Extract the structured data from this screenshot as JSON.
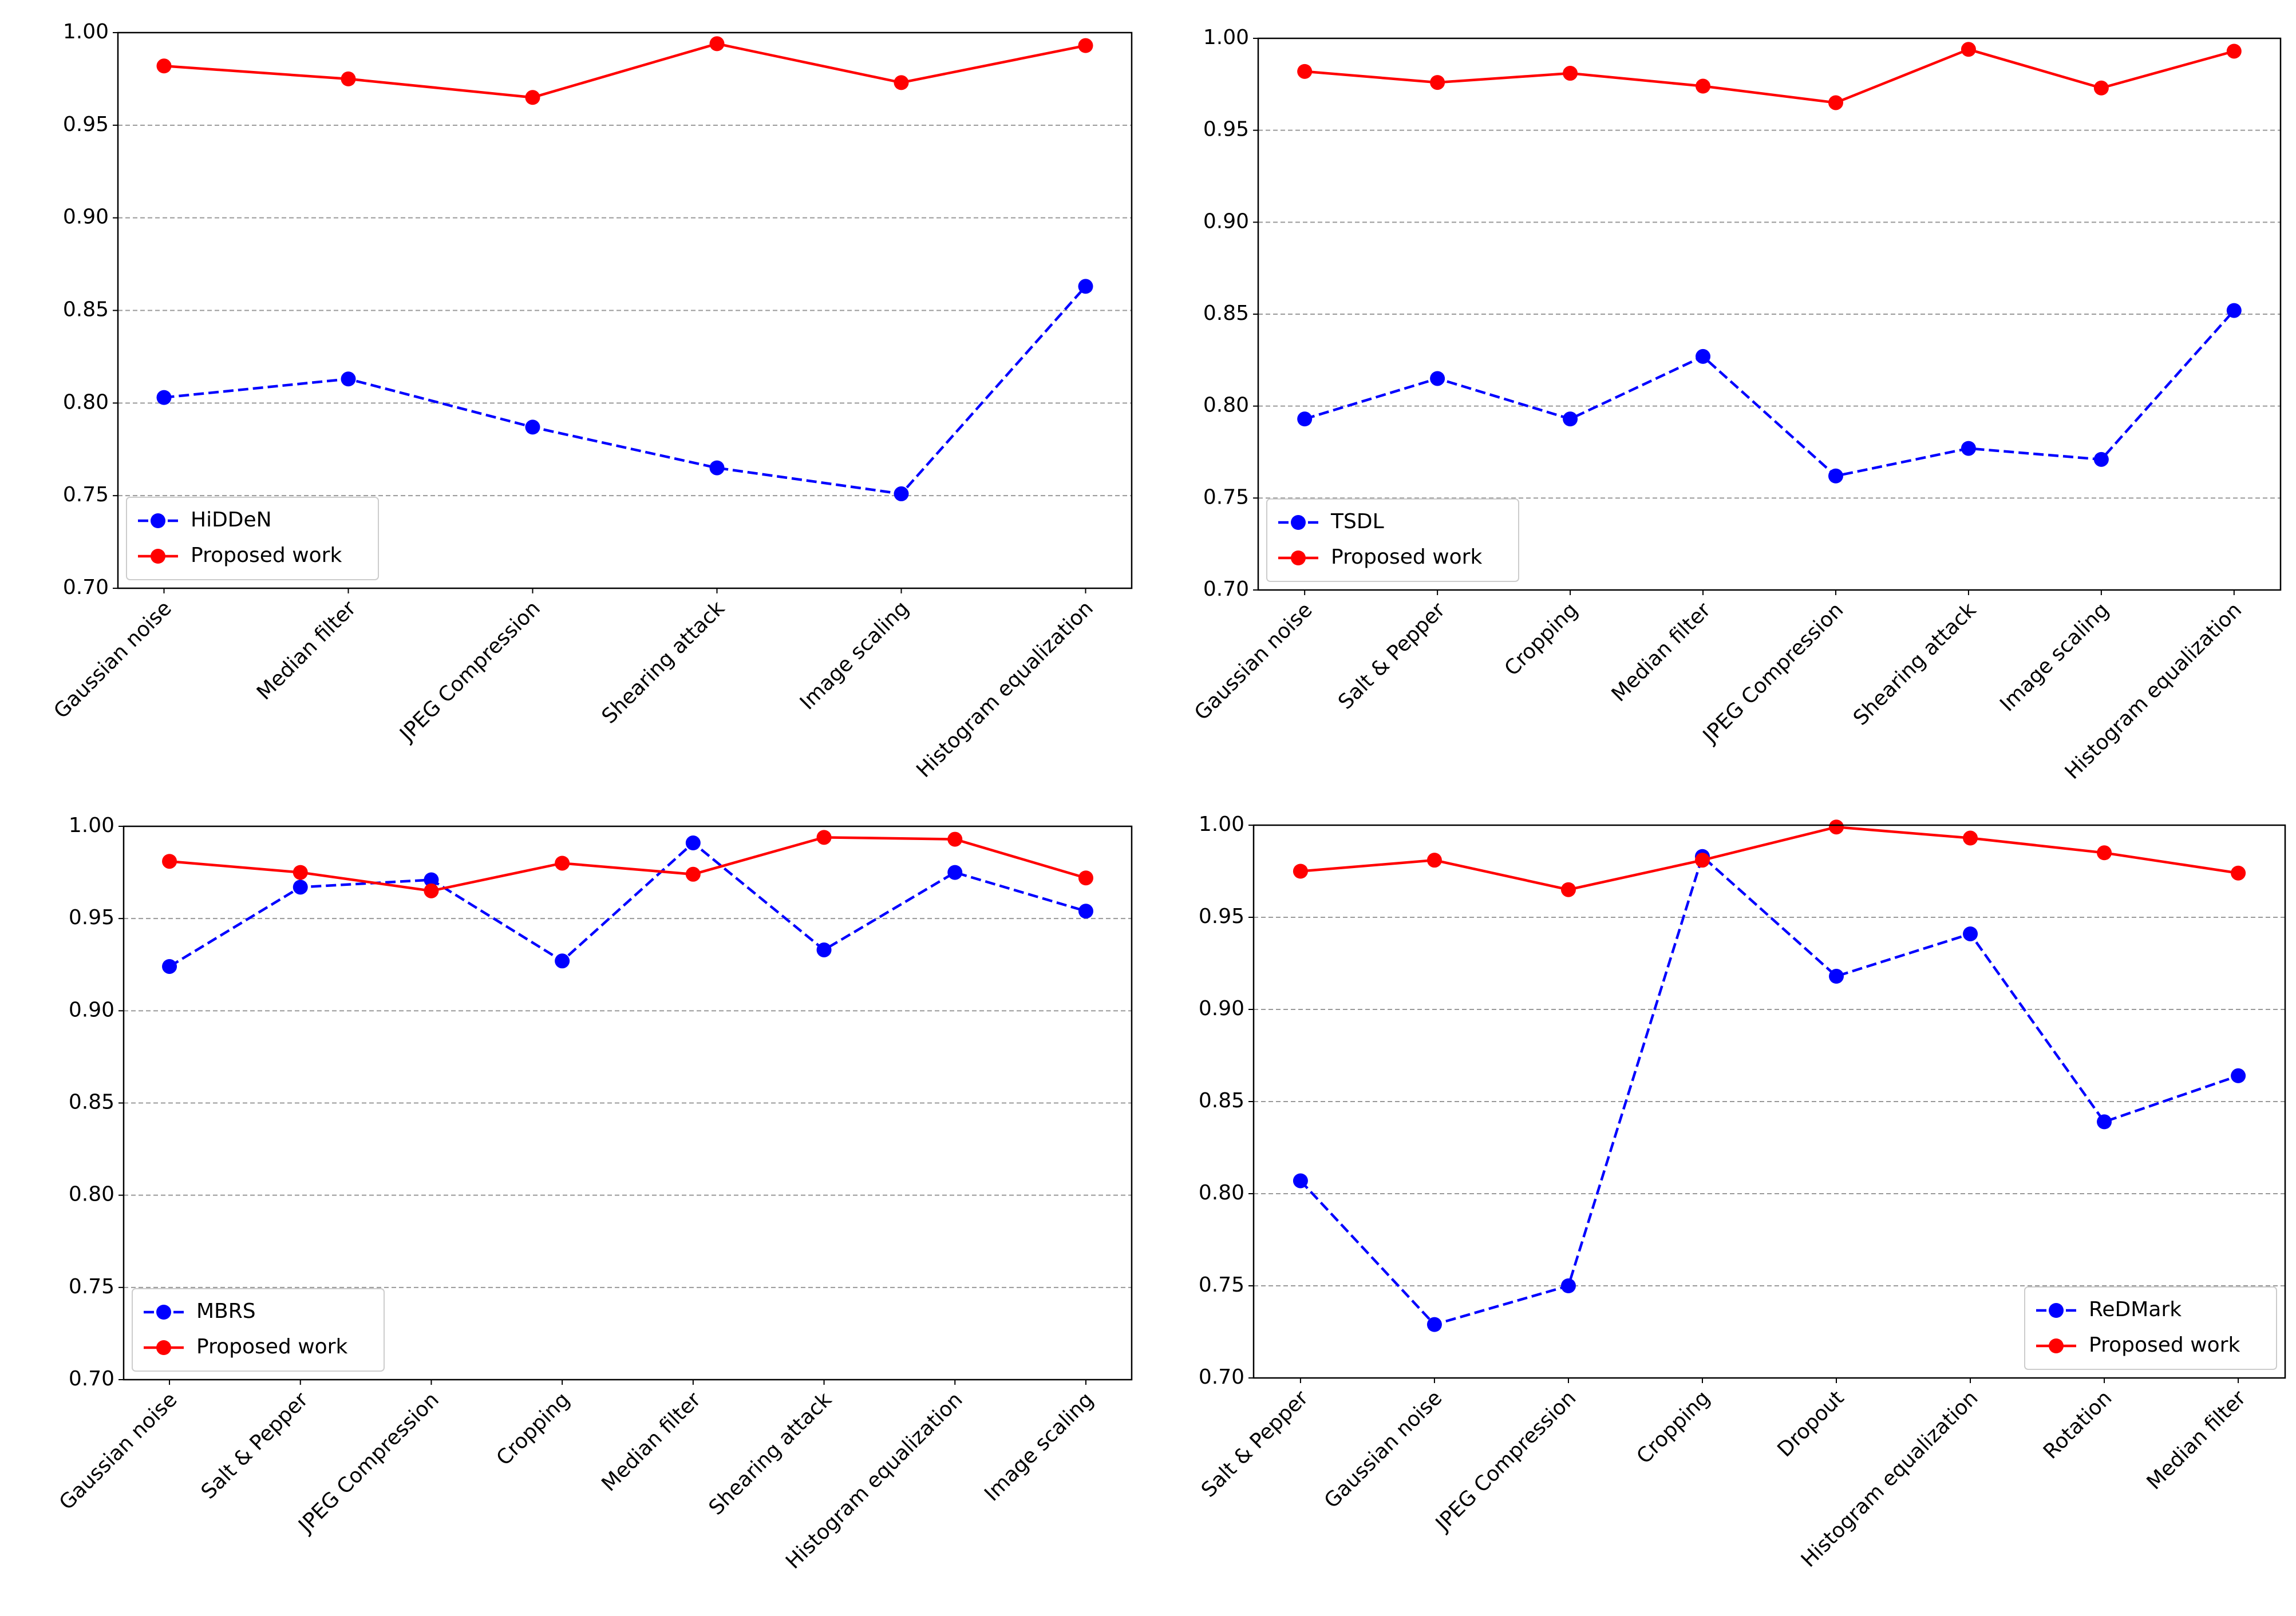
{
  "chart_data": [
    {
      "type": "line",
      "categories": [
        "Gaussian noise",
        "Median filter",
        "JPEG Compression",
        "Shearing attack",
        "Image scaling",
        "Histogram equalization"
      ],
      "series": [
        {
          "name": "HiDDeN",
          "color": "#0000ff",
          "linestyle": "dashed",
          "values": [
            0.803,
            0.813,
            0.787,
            0.765,
            0.751,
            0.863
          ]
        },
        {
          "name": "Proposed work",
          "color": "#ff0000",
          "linestyle": "solid",
          "values": [
            0.982,
            0.975,
            0.965,
            0.994,
            0.973,
            0.993
          ]
        }
      ],
      "ylim": [
        0.7,
        1.0
      ],
      "yticks": [
        {
          "value": 0.7,
          "label": "0.70"
        },
        0.75,
        {
          "value": 0.8,
          "label": "0.80"
        },
        0.85,
        {
          "value": 0.9,
          "label": "0.90"
        },
        0.95,
        {
          "value": 1.0,
          "label": "1.00"
        }
      ],
      "grid": true,
      "legend": "lower left"
    },
    {
      "type": "line",
      "categories": [
        "Gaussian noise",
        "Salt & Pepper",
        "Cropping",
        "Median filter",
        "JPEG Compression",
        "Shearing attack",
        "Image scaling",
        "Histogram equalization"
      ],
      "series": [
        {
          "name": "TSDL",
          "color": "#0000ff",
          "linestyle": "dashed",
          "values": [
            0.793,
            0.815,
            0.793,
            0.827,
            0.762,
            0.777,
            0.771,
            0.852
          ]
        },
        {
          "name": "Proposed work",
          "color": "#ff0000",
          "linestyle": "solid",
          "values": [
            0.982,
            0.976,
            0.981,
            0.974,
            0.965,
            0.994,
            0.973,
            0.993
          ]
        }
      ],
      "ylim": [
        0.7,
        1.0
      ],
      "yticks": [
        {
          "value": 0.7,
          "label": "0.70"
        },
        0.75,
        {
          "value": 0.8,
          "label": "0.80"
        },
        0.85,
        {
          "value": 0.9,
          "label": "0.90"
        },
        0.95,
        {
          "value": 1.0,
          "label": "1.00"
        }
      ],
      "grid": true,
      "legend": "lower left"
    },
    {
      "type": "line",
      "categories": [
        "Gaussian noise",
        "Salt & Pepper",
        "JPEG Compression",
        "Cropping",
        "Median filter",
        "Shearing attack",
        "Histogram equalization",
        "Image scaling"
      ],
      "series": [
        {
          "name": "MBRS",
          "color": "#0000ff",
          "linestyle": "dashed",
          "values": [
            0.924,
            0.967,
            0.971,
            0.927,
            0.991,
            0.933,
            0.975,
            0.954
          ]
        },
        {
          "name": "Proposed work",
          "color": "#ff0000",
          "linestyle": "solid",
          "values": [
            0.981,
            0.975,
            0.965,
            0.98,
            0.974,
            0.994,
            0.993,
            0.972
          ]
        }
      ],
      "ylim": [
        0.7,
        1.0
      ],
      "yticks": [
        {
          "value": 0.7,
          "label": "0.70"
        },
        0.75,
        {
          "value": 0.8,
          "label": "0.80"
        },
        0.85,
        {
          "value": 0.9,
          "label": "0.90"
        },
        0.95,
        {
          "value": 1.0,
          "label": "1.00"
        }
      ],
      "grid": true,
      "legend": "lower left"
    },
    {
      "type": "line",
      "categories": [
        "Salt & Pepper",
        "Gaussian noise",
        "JPEG Compression",
        "Cropping",
        "Dropout",
        "Histogram equalization",
        "Rotation",
        "Median filter"
      ],
      "series": [
        {
          "name": "ReDMark",
          "color": "#0000ff",
          "linestyle": "dashed",
          "values": [
            0.807,
            0.729,
            0.75,
            0.983,
            0.918,
            0.941,
            0.839,
            0.864
          ]
        },
        {
          "name": "Proposed work",
          "color": "#ff0000",
          "linestyle": "solid",
          "values": [
            0.975,
            0.981,
            0.965,
            0.981,
            0.999,
            0.993,
            0.985,
            0.974
          ]
        }
      ],
      "ylim": [
        0.7,
        1.0
      ],
      "yticks": [
        {
          "value": 0.7,
          "label": "0.70"
        },
        0.75,
        {
          "value": 0.8,
          "label": "0.80"
        },
        0.85,
        {
          "value": 0.9,
          "label": "0.90"
        },
        0.95,
        {
          "value": 1.0,
          "label": "1.00"
        }
      ],
      "grid": true,
      "legend": "lower right"
    }
  ]
}
